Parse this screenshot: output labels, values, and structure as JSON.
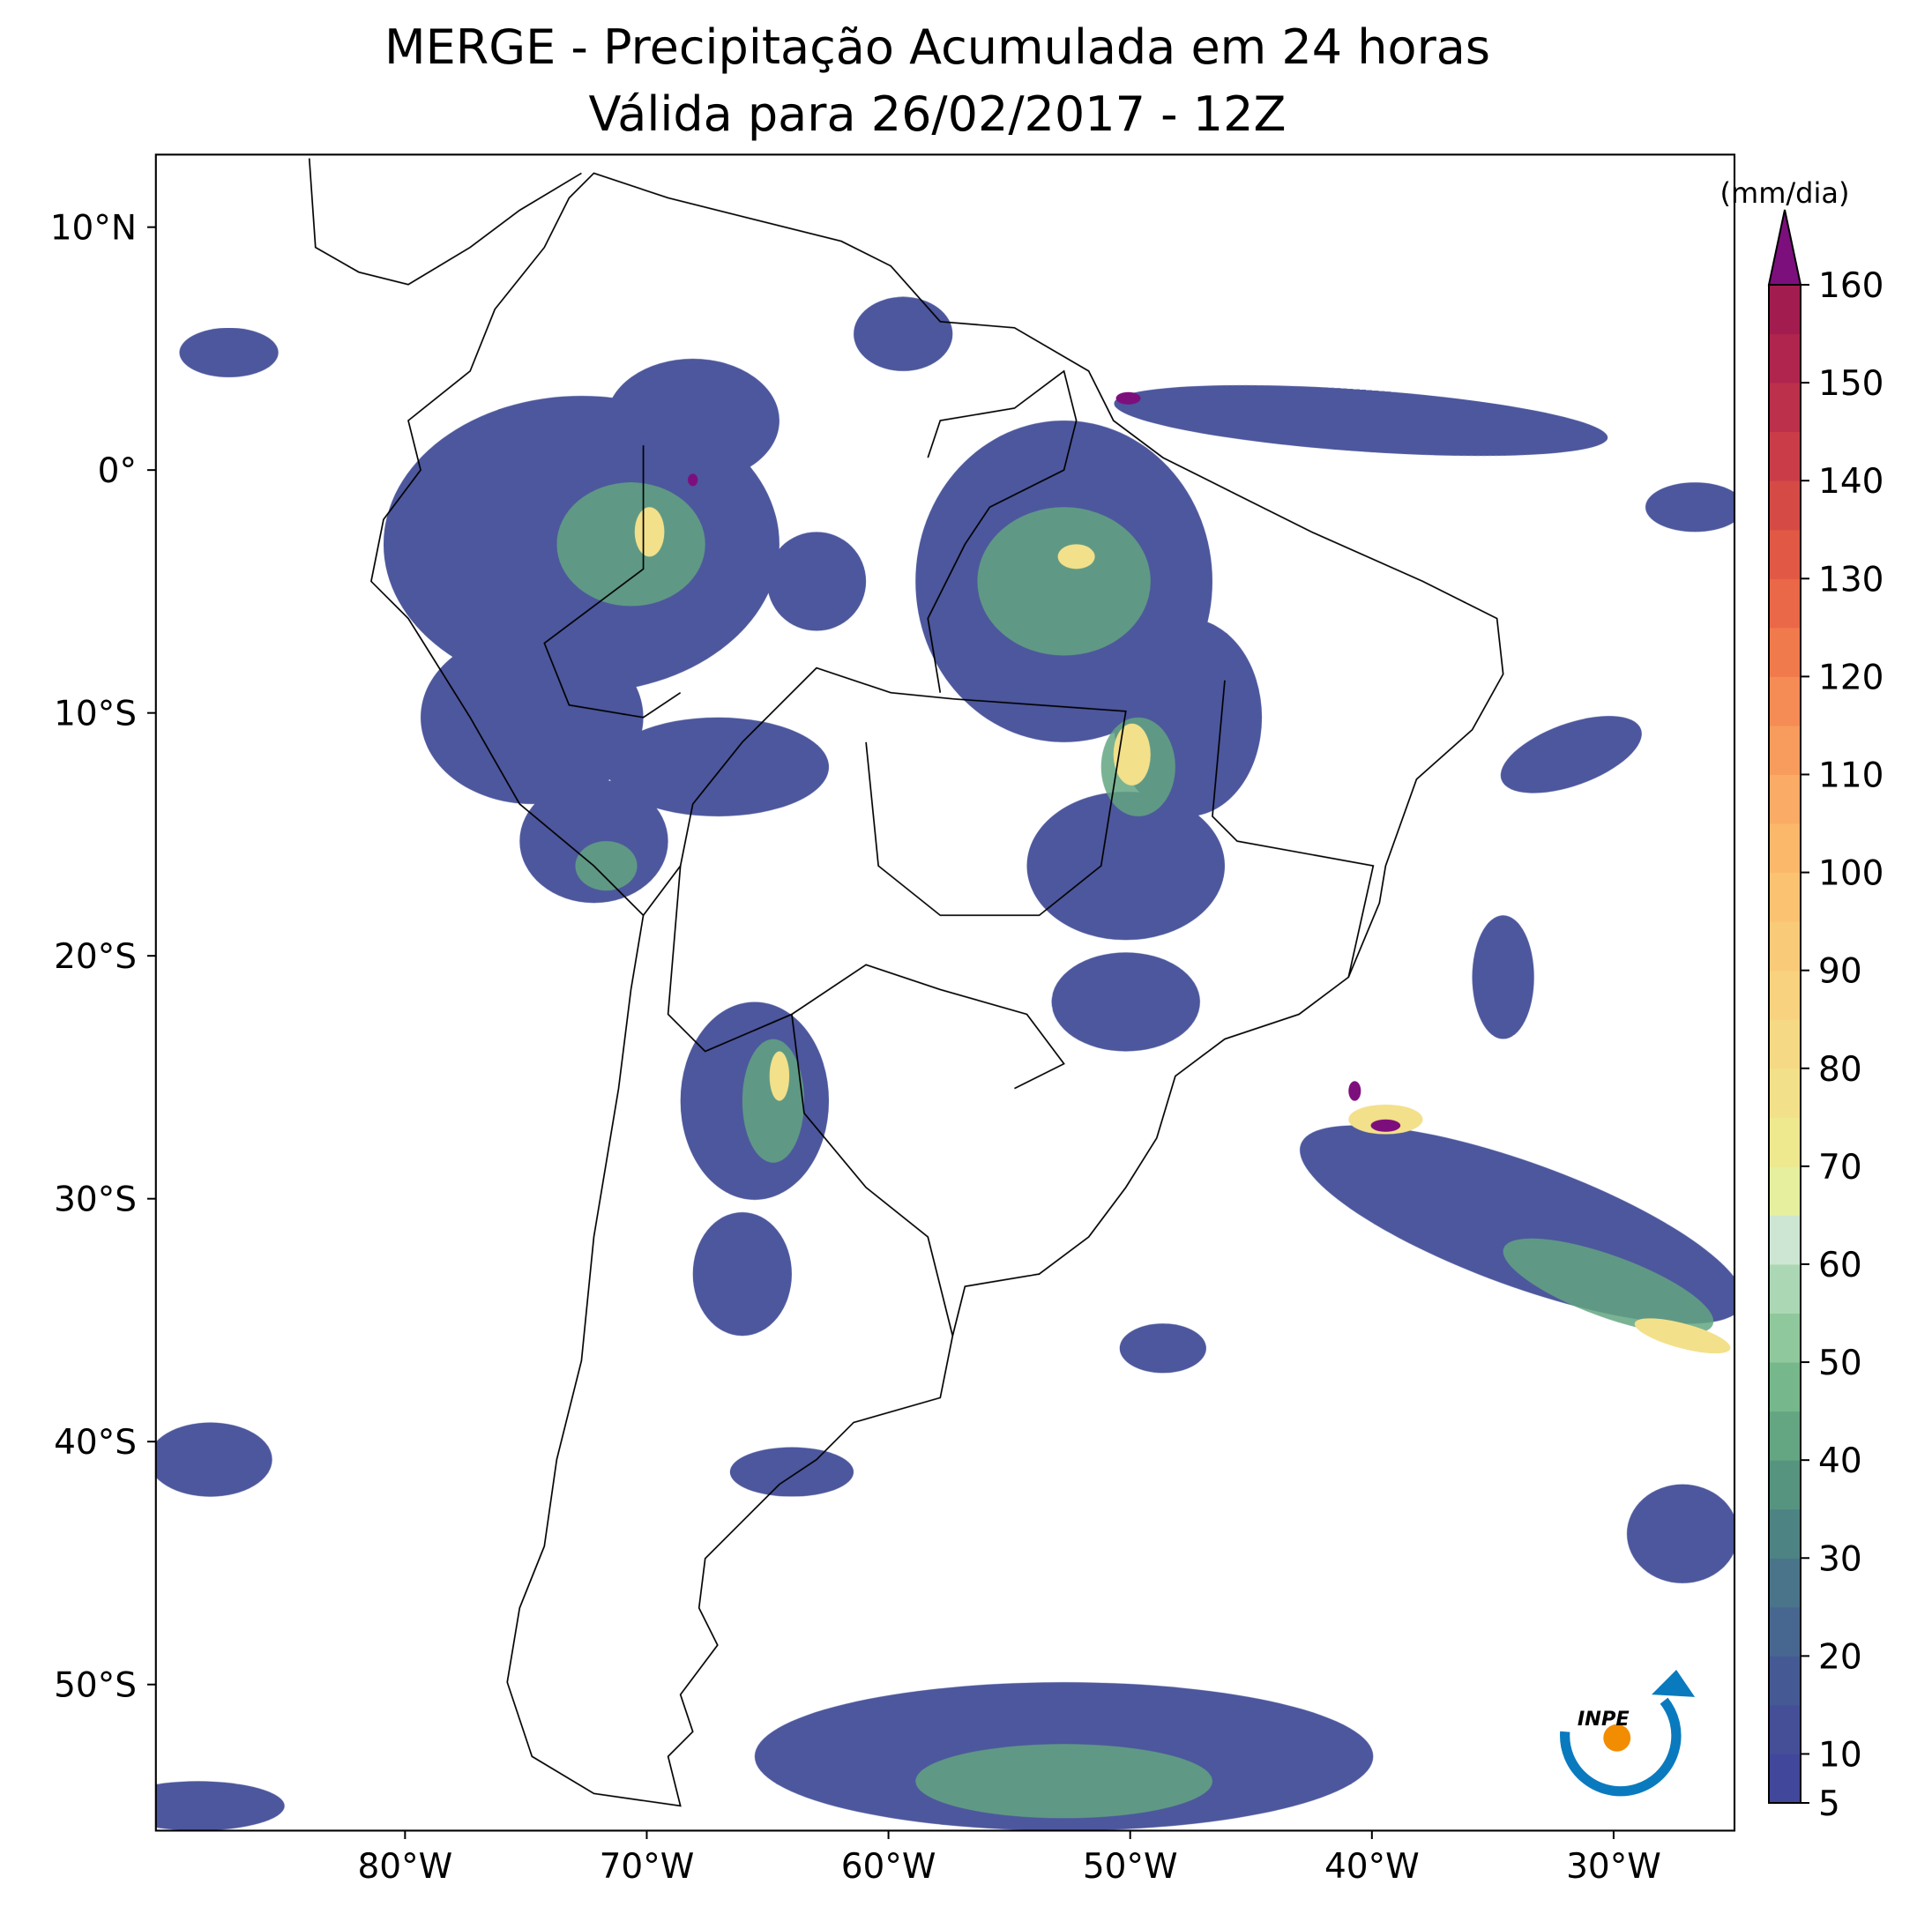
{
  "chart_data": {
    "type": "map",
    "title": "MERGE - Precipitação Acumulada em 24 horas",
    "subtitle": "Válida para 26/02/2017 - 12Z",
    "xlim": [
      -90.3,
      -25
    ],
    "ylim": [
      -56,
      13
    ],
    "xticks": [
      {
        "value": -80,
        "label": "80°W"
      },
      {
        "value": -70,
        "label": "70°W"
      },
      {
        "value": -60,
        "label": "60°W"
      },
      {
        "value": -50,
        "label": "50°W"
      },
      {
        "value": -40,
        "label": "40°W"
      },
      {
        "value": -30,
        "label": "30°W"
      }
    ],
    "yticks": [
      {
        "value": 10,
        "label": "10°N"
      },
      {
        "value": 0,
        "label": "0°"
      },
      {
        "value": -10,
        "label": "10°S"
      },
      {
        "value": -20,
        "label": "20°S"
      },
      {
        "value": -30,
        "label": "30°S"
      },
      {
        "value": -40,
        "label": "40°S"
      },
      {
        "value": -50,
        "label": "50°S"
      }
    ],
    "colorbar": {
      "label": "(mm/dia)",
      "lim": [
        5,
        160
      ],
      "ticks": [
        5,
        10,
        20,
        30,
        40,
        50,
        60,
        70,
        80,
        90,
        100,
        110,
        120,
        130,
        140,
        150,
        160
      ],
      "colors": [
        "#41479a",
        "#444f98",
        "#455a95",
        "#486790",
        "#4a748a",
        "#4e8384",
        "#56947f",
        "#63a681",
        "#76b88b",
        "#8fc89c",
        "#acd7b4",
        "#cde6d3",
        "#e6ef9e",
        "#eee88f",
        "#f3e08a",
        "#f6d984",
        "#f8d27e",
        "#f9cb78",
        "#fbc371",
        "#fbb86b",
        "#faab65",
        "#f89c5d",
        "#f58b55",
        "#f17a4d",
        "#ea6847",
        "#e15844",
        "#d64a45",
        "#ca3d48",
        "#bd304b",
        "#b0254e",
        "#a21c4f"
      ],
      "extend_color": "#7d0f7d"
    },
    "logo": "INPE"
  }
}
